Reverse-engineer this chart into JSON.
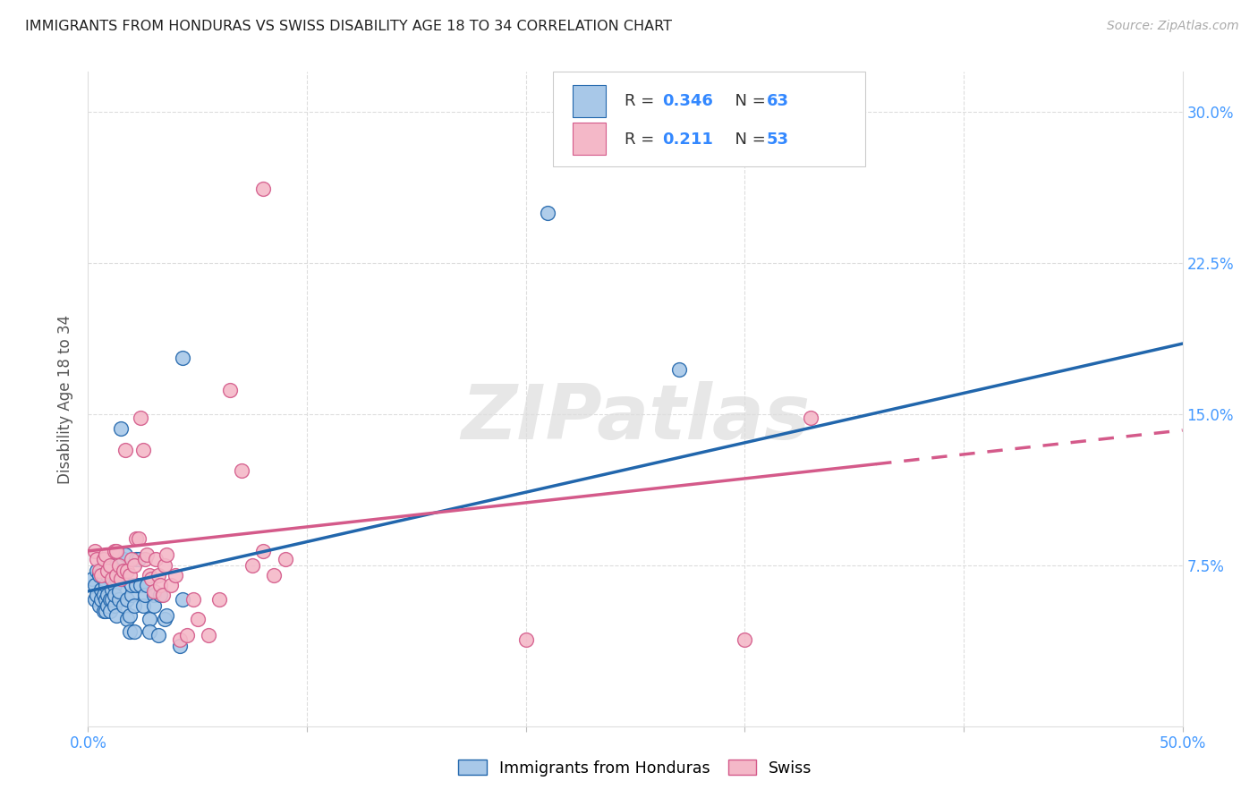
{
  "title": "IMMIGRANTS FROM HONDURAS VS SWISS DISABILITY AGE 18 TO 34 CORRELATION CHART",
  "source": "Source: ZipAtlas.com",
  "ylabel": "Disability Age 18 to 34",
  "xlim": [
    0.0,
    0.5
  ],
  "ylim": [
    -0.005,
    0.32
  ],
  "color_blue": "#a8c8e8",
  "color_pink": "#f4b8c8",
  "line_color_blue": "#2166ac",
  "line_color_pink": "#d45a8a",
  "watermark": "ZIPatlas",
  "blue_scatter": [
    [
      0.002,
      0.068
    ],
    [
      0.003,
      0.065
    ],
    [
      0.003,
      0.058
    ],
    [
      0.004,
      0.072
    ],
    [
      0.004,
      0.06
    ],
    [
      0.005,
      0.07
    ],
    [
      0.005,
      0.055
    ],
    [
      0.006,
      0.063
    ],
    [
      0.006,
      0.058
    ],
    [
      0.007,
      0.068
    ],
    [
      0.007,
      0.052
    ],
    [
      0.007,
      0.06
    ],
    [
      0.008,
      0.065
    ],
    [
      0.008,
      0.058
    ],
    [
      0.008,
      0.052
    ],
    [
      0.009,
      0.06
    ],
    [
      0.009,
      0.055
    ],
    [
      0.009,
      0.07
    ],
    [
      0.01,
      0.075
    ],
    [
      0.01,
      0.058
    ],
    [
      0.01,
      0.052
    ],
    [
      0.011,
      0.063
    ],
    [
      0.011,
      0.058
    ],
    [
      0.012,
      0.055
    ],
    [
      0.012,
      0.065
    ],
    [
      0.012,
      0.06
    ],
    [
      0.013,
      0.068
    ],
    [
      0.013,
      0.05
    ],
    [
      0.014,
      0.058
    ],
    [
      0.014,
      0.062
    ],
    [
      0.015,
      0.143
    ],
    [
      0.015,
      0.072
    ],
    [
      0.016,
      0.055
    ],
    [
      0.016,
      0.078
    ],
    [
      0.017,
      0.08
    ],
    [
      0.018,
      0.048
    ],
    [
      0.018,
      0.058
    ],
    [
      0.019,
      0.042
    ],
    [
      0.019,
      0.05
    ],
    [
      0.02,
      0.06
    ],
    [
      0.02,
      0.065
    ],
    [
      0.021,
      0.042
    ],
    [
      0.021,
      0.055
    ],
    [
      0.022,
      0.065
    ],
    [
      0.022,
      0.078
    ],
    [
      0.023,
      0.078
    ],
    [
      0.024,
      0.065
    ],
    [
      0.025,
      0.055
    ],
    [
      0.026,
      0.06
    ],
    [
      0.027,
      0.065
    ],
    [
      0.028,
      0.048
    ],
    [
      0.028,
      0.042
    ],
    [
      0.03,
      0.06
    ],
    [
      0.03,
      0.055
    ],
    [
      0.032,
      0.04
    ],
    [
      0.033,
      0.06
    ],
    [
      0.035,
      0.048
    ],
    [
      0.036,
      0.05
    ],
    [
      0.043,
      0.178
    ],
    [
      0.043,
      0.058
    ],
    [
      0.21,
      0.25
    ],
    [
      0.27,
      0.172
    ],
    [
      0.042,
      0.035
    ]
  ],
  "pink_scatter": [
    [
      0.003,
      0.082
    ],
    [
      0.004,
      0.078
    ],
    [
      0.005,
      0.072
    ],
    [
      0.006,
      0.07
    ],
    [
      0.007,
      0.078
    ],
    [
      0.008,
      0.08
    ],
    [
      0.009,
      0.072
    ],
    [
      0.01,
      0.075
    ],
    [
      0.011,
      0.068
    ],
    [
      0.012,
      0.082
    ],
    [
      0.013,
      0.082
    ],
    [
      0.013,
      0.07
    ],
    [
      0.014,
      0.075
    ],
    [
      0.015,
      0.068
    ],
    [
      0.016,
      0.072
    ],
    [
      0.017,
      0.132
    ],
    [
      0.018,
      0.072
    ],
    [
      0.019,
      0.07
    ],
    [
      0.02,
      0.078
    ],
    [
      0.021,
      0.075
    ],
    [
      0.022,
      0.088
    ],
    [
      0.023,
      0.088
    ],
    [
      0.024,
      0.148
    ],
    [
      0.025,
      0.132
    ],
    [
      0.026,
      0.078
    ],
    [
      0.027,
      0.08
    ],
    [
      0.028,
      0.07
    ],
    [
      0.029,
      0.068
    ],
    [
      0.03,
      0.062
    ],
    [
      0.031,
      0.078
    ],
    [
      0.032,
      0.07
    ],
    [
      0.033,
      0.065
    ],
    [
      0.034,
      0.06
    ],
    [
      0.035,
      0.075
    ],
    [
      0.036,
      0.08
    ],
    [
      0.038,
      0.065
    ],
    [
      0.04,
      0.07
    ],
    [
      0.042,
      0.038
    ],
    [
      0.045,
      0.04
    ],
    [
      0.048,
      0.058
    ],
    [
      0.05,
      0.048
    ],
    [
      0.055,
      0.04
    ],
    [
      0.06,
      0.058
    ],
    [
      0.065,
      0.162
    ],
    [
      0.07,
      0.122
    ],
    [
      0.075,
      0.075
    ],
    [
      0.08,
      0.082
    ],
    [
      0.085,
      0.07
    ],
    [
      0.09,
      0.078
    ],
    [
      0.2,
      0.038
    ],
    [
      0.3,
      0.038
    ],
    [
      0.08,
      0.262
    ],
    [
      0.33,
      0.148
    ]
  ],
  "blue_trendline": [
    [
      0.0,
      0.062
    ],
    [
      0.5,
      0.185
    ]
  ],
  "pink_trendline": [
    [
      0.0,
      0.082
    ],
    [
      0.5,
      0.142
    ]
  ],
  "pink_trendline_dashed_start": 0.36
}
